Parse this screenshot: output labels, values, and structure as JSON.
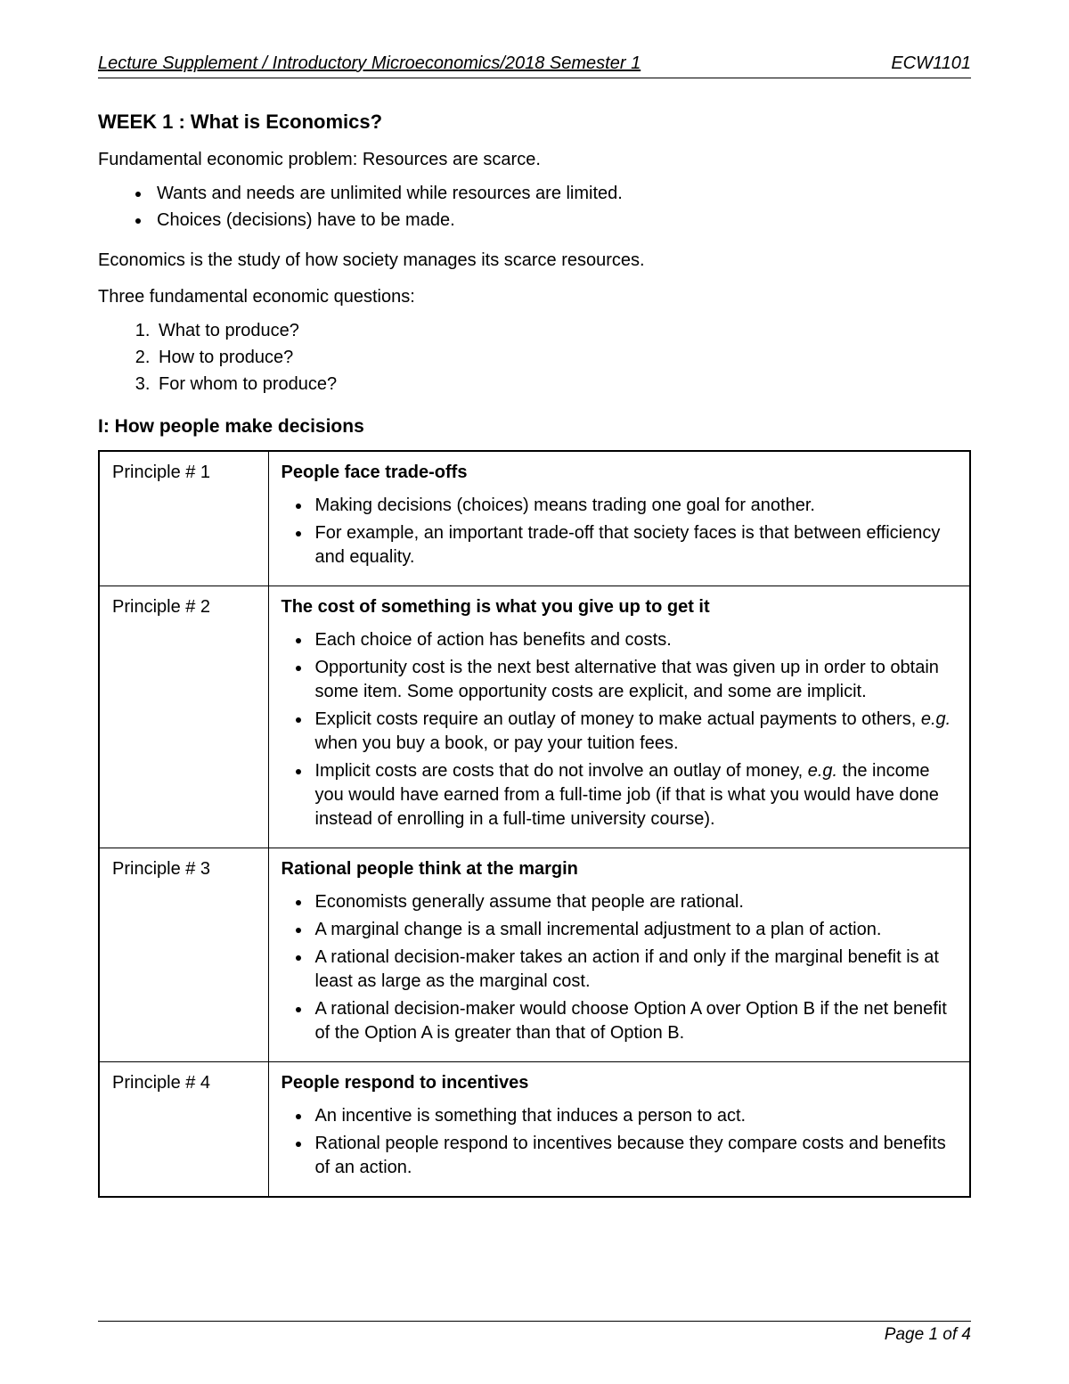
{
  "header": {
    "left": "Lecture Supplement / Introductory Microeconomics/2018 Semester 1",
    "right": "ECW1101"
  },
  "week_title": "WEEK 1 : What is Economics?",
  "intro_line": "Fundamental economic problem:  Resources are scarce.",
  "intro_bullets": [
    "Wants and needs are unlimited while resources are limited.",
    "Choices (decisions) have to be made."
  ],
  "study_line": "Economics is the study of how society manages its scarce resources.",
  "questions_intro": "Three fundamental economic questions:",
  "questions": [
    "What to produce?",
    "How to produce?",
    "For whom to produce?"
  ],
  "section_title": "I:  How people make decisions",
  "principles": [
    {
      "label": "Principle # 1",
      "title": "People face trade-offs",
      "bullets": [
        "Making decisions (choices) means trading one goal for another.",
        "For example, an important trade-off that society faces is that between efficiency and equality."
      ]
    },
    {
      "label": "Principle # 2",
      "title": "The cost of something is what you give up to get it",
      "bullets": [
        "Each choice of action has benefits and costs.",
        "Opportunity cost is the next best alternative that was given up in order to obtain some item. Some opportunity costs are explicit, and some are implicit.",
        "Explicit costs require an outlay of money to make actual payments to others, <span class=\"eg\">e.g.</span> when you buy a book, or pay your tuition fees.",
        "Implicit costs are costs that do not involve an outlay of money, <span class=\"eg\">e.g.</span> the income you would have earned from a full-time job (if that is what you would have done instead of enrolling in a full-time university course)."
      ]
    },
    {
      "label": "Principle # 3",
      "title": "Rational people think at the margin",
      "bullets": [
        "Economists generally assume that people are rational.",
        "A marginal change is a small incremental adjustment to a plan of action.",
        "A rational decision-maker takes an action if and only if the marginal benefit is at least as large as the marginal cost.",
        "A rational decision-maker would choose Option A over Option B if the net benefit of the Option A is greater than that of Option B."
      ]
    },
    {
      "label": "Principle # 4",
      "title": "People respond to incentives",
      "bullets": [
        "An incentive is something that induces a person to act.",
        "Rational people respond to incentives because they compare costs and benefits of an action."
      ]
    }
  ],
  "footer": "Page 1 of 4"
}
